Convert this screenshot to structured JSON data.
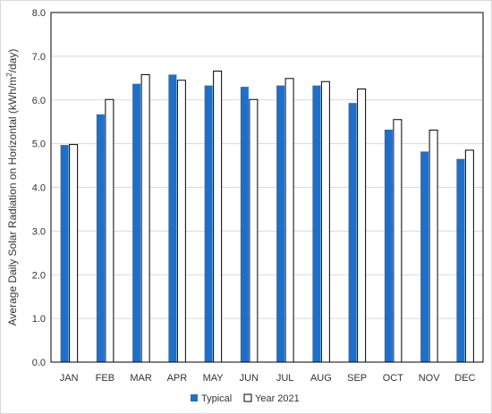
{
  "chart_data": {
    "type": "bar",
    "ylabel_prefix": "Average Daily Solar Radiation on Horizontal (kWh/m",
    "ylabel_sup": "2",
    "ylabel_suffix": "/day)",
    "xlabel": "",
    "ylim": [
      0,
      8
    ],
    "yticks": [
      "0.0",
      "1.0",
      "2.0",
      "3.0",
      "4.0",
      "5.0",
      "6.0",
      "7.0",
      "8.0"
    ],
    "categories": [
      "JAN",
      "FEB",
      "MAR",
      "APR",
      "MAY",
      "JUN",
      "JUL",
      "AUG",
      "SEP",
      "OCT",
      "NOV",
      "DEC"
    ],
    "series": [
      {
        "name": "Typical",
        "color": "#1f6fc8",
        "values": [
          4.97,
          5.67,
          6.37,
          6.58,
          6.33,
          6.3,
          6.33,
          6.33,
          5.93,
          5.32,
          4.82,
          4.65
        ]
      },
      {
        "name": "Year 2021",
        "color": "#ffffff",
        "values": [
          4.98,
          6.01,
          6.58,
          6.45,
          6.66,
          6.01,
          6.49,
          6.42,
          6.25,
          5.55,
          5.31,
          4.85
        ]
      }
    ],
    "grid": true,
    "legend_position": "bottom-center"
  }
}
